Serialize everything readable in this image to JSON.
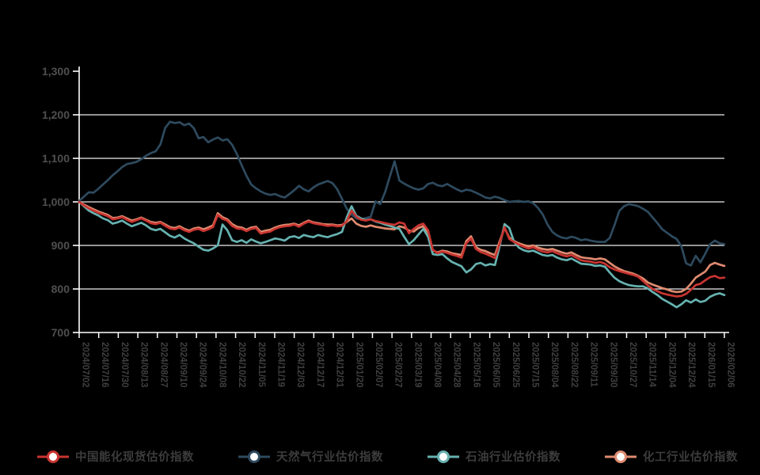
{
  "chart_data": {
    "type": "line",
    "title": "",
    "grid": "horizontal",
    "legend_position": "bottom",
    "ylim": [
      700,
      1300
    ],
    "y_tick_labels": [
      "1,300",
      "1,200",
      "1,100",
      "1,000",
      "900",
      "800",
      "700"
    ],
    "x_labels": [
      "2024/07/02",
      "2024/07/16",
      "2024/07/30",
      "2024/08/13",
      "2024/08/27",
      "2024/09/10",
      "2024/09/24",
      "2024/10/08",
      "2024/10/22",
      "2024/11/05",
      "2024/11/19",
      "2024/12/03",
      "2024/12/17",
      "2024/12/31",
      "2025/01/20",
      "2025/02/07",
      "2025/02/27",
      "2025/03/19",
      "2025/04/08",
      "2025/04/28",
      "2025/05/16",
      "2025/06/05",
      "2025/06/25",
      "2025/07/15",
      "2025/08/04",
      "2025/08/22",
      "2025/09/11",
      "2025/09/30",
      "2025/10/27",
      "2025/11/14",
      "2025/12/04",
      "2025/12/24",
      "2026/01/15",
      "2026/02/06"
    ],
    "colors": {
      "axis": "#ffffff",
      "gridline": "#ececec",
      "tick_label": "#3f3f3f",
      "background": "#000000"
    },
    "series": [
      {
        "name": "中国能化现货估价指数",
        "color": "#c93531",
        "values": [
          1000,
          992,
          985,
          980,
          975,
          971,
          967,
          960,
          962,
          965,
          959,
          954,
          958,
          962,
          957,
          951,
          949,
          952,
          945,
          939,
          937,
          941,
          935,
          931,
          936,
          938,
          933,
          937,
          942,
          970,
          961,
          957,
          945,
          939,
          938,
          933,
          938,
          940,
          927,
          930,
          932,
          938,
          942,
          944,
          945,
          948,
          943,
          950,
          955,
          951,
          949,
          947,
          945,
          946,
          944,
          945,
          956,
          980,
          966,
          959,
          957,
          960,
          956,
          954,
          951,
          949,
          947,
          953,
          950,
          928,
          938,
          946,
          950,
          935,
          890,
          882,
          886,
          883,
          879,
          876,
          872,
          905,
          916,
          892,
          885,
          881,
          876,
          871,
          905,
          942,
          915,
          908,
          902,
          897,
          893,
          896,
          890,
          886,
          884,
          887,
          882,
          878,
          875,
          878,
          872,
          866,
          864,
          863,
          860,
          862,
          858,
          850,
          845,
          841,
          838,
          835,
          832,
          828,
          818,
          808,
          800,
          795,
          790,
          787,
          785,
          783,
          784,
          789,
          798,
          809,
          812,
          820,
          827,
          830,
          825,
          826
        ]
      },
      {
        "name": "天然气行业估价指数",
        "color": "#2e4a5e",
        "values": [
          1002,
          1012,
          1022,
          1021,
          1030,
          1040,
          1050,
          1061,
          1070,
          1080,
          1087,
          1089,
          1092,
          1098,
          1106,
          1112,
          1116,
          1132,
          1170,
          1184,
          1181,
          1183,
          1176,
          1180,
          1169,
          1146,
          1149,
          1137,
          1143,
          1148,
          1141,
          1144,
          1131,
          1110,
          1084,
          1060,
          1040,
          1031,
          1024,
          1019,
          1016,
          1018,
          1013,
          1010,
          1018,
          1027,
          1037,
          1029,
          1024,
          1033,
          1040,
          1044,
          1048,
          1043,
          1029,
          1007,
          984,
          971,
          962,
          960,
          963,
          966,
          1001,
          995,
          1022,
          1058,
          1093,
          1049,
          1042,
          1036,
          1031,
          1028,
          1031,
          1041,
          1044,
          1038,
          1036,
          1041,
          1035,
          1029,
          1024,
          1028,
          1026,
          1021,
          1016,
          1010,
          1008,
          1012,
          1009,
          1004,
          1000,
          1001,
          1002,
          1000,
          1001,
          997,
          986,
          971,
          948,
          931,
          923,
          918,
          916,
          920,
          917,
          912,
          914,
          911,
          909,
          908,
          908,
          917,
          946,
          979,
          990,
          995,
          993,
          990,
          984,
          977,
          964,
          951,
          937,
          929,
          921,
          915,
          898,
          859,
          854,
          876,
          861,
          881,
          903,
          911,
          905,
          903
        ]
      },
      {
        "name": "石油行业估价指数",
        "color": "#66b2b0",
        "values": [
          1000,
          990,
          980,
          974,
          969,
          962,
          958,
          950,
          953,
          957,
          950,
          944,
          948,
          952,
          946,
          938,
          935,
          938,
          930,
          922,
          918,
          924,
          916,
          910,
          905,
          897,
          890,
          888,
          893,
          900,
          948,
          935,
          912,
          908,
          912,
          906,
          914,
          909,
          905,
          908,
          912,
          916,
          914,
          911,
          919,
          921,
          917,
          924,
          921,
          919,
          924,
          921,
          919,
          923,
          926,
          931,
          965,
          990,
          968,
          962,
          958,
          960,
          955,
          952,
          948,
          945,
          941,
          938,
          920,
          903,
          912,
          925,
          938,
          920,
          880,
          878,
          880,
          870,
          862,
          857,
          852,
          838,
          845,
          857,
          860,
          854,
          857,
          855,
          900,
          949,
          940,
          908,
          895,
          889,
          886,
          888,
          883,
          878,
          876,
          878,
          872,
          868,
          866,
          870,
          864,
          858,
          857,
          856,
          853,
          854,
          851,
          838,
          826,
          818,
          813,
          809,
          807,
          806,
          806,
          801,
          793,
          786,
          777,
          771,
          765,
          758,
          765,
          774,
          769,
          776,
          770,
          773,
          782,
          787,
          790,
          786
        ]
      },
      {
        "name": "化工行业估价指数",
        "color": "#df8b70",
        "values": [
          1000,
          994,
          988,
          983,
          978,
          974,
          970,
          963,
          964,
          967,
          962,
          957,
          960,
          964,
          959,
          954,
          952,
          954,
          948,
          942,
          940,
          944,
          938,
          934,
          939,
          941,
          937,
          941,
          946,
          974,
          965,
          960,
          949,
          943,
          941,
          936,
          941,
          943,
          931,
          934,
          936,
          941,
          945,
          947,
          948,
          950,
          946,
          952,
          957,
          953,
          951,
          949,
          948,
          948,
          946,
          947,
          954,
          962,
          950,
          945,
          943,
          946,
          943,
          941,
          939,
          938,
          937,
          944,
          941,
          934,
          932,
          940,
          944,
          930,
          888,
          884,
          888,
          886,
          882,
          880,
          878,
          910,
          921,
          896,
          890,
          887,
          882,
          878,
          910,
          940,
          918,
          910,
          905,
          901,
          898,
          900,
          895,
          892,
          890,
          892,
          888,
          884,
          881,
          884,
          878,
          873,
          871,
          870,
          868,
          870,
          868,
          860,
          852,
          846,
          841,
          838,
          835,
          830,
          824,
          815,
          810,
          806,
          802,
          799,
          795,
          793,
          794,
          800,
          812,
          826,
          833,
          840,
          855,
          860,
          856,
          853
        ]
      }
    ]
  }
}
